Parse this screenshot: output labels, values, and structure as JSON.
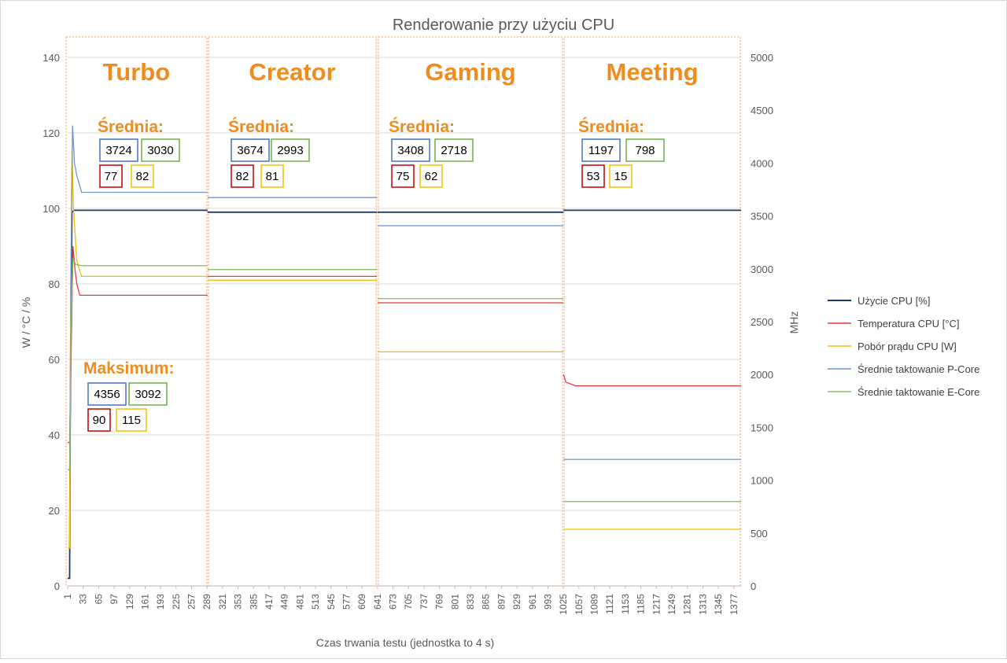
{
  "chart_data": {
    "type": "line",
    "title": "Renderowanie przy użyciu CPU",
    "xlabel": "Czas trwania testu (jednostka to 4 s)",
    "ylabel_left": "W / °C / %",
    "ylabel_right": "MHz",
    "ylim_left": [
      0,
      140
    ],
    "yticks_left": [
      0,
      20,
      40,
      60,
      80,
      100,
      120,
      140
    ],
    "ylim_right": [
      0,
      5000
    ],
    "yticks_right": [
      0,
      500,
      1000,
      1500,
      2000,
      2500,
      3000,
      3500,
      4000,
      4500,
      5000
    ],
    "xlim": [
      1,
      1392
    ],
    "xtick_start": 1,
    "xtick_step": 32,
    "xtick_count": 44,
    "grid": "horizontal",
    "legend_position": "right",
    "colors": {
      "cpu_usage": "#203864",
      "temperature": "#E03C3C",
      "power": "#F0C000",
      "pcore": "#6E93CF",
      "ecore": "#8CC068",
      "accent": "#F08C1E",
      "box_blue": "#4472C4",
      "box_green": "#70AD47",
      "box_red": "#C00000",
      "box_yellow": "#F0C000"
    },
    "series": [
      {
        "name": "Użycie CPU [%]",
        "key": "cpu_usage",
        "axis": "left",
        "segments": [
          {
            "x": [
              1,
              5,
              6,
              10,
              14,
              290
            ],
            "y": [
              2,
              2,
              40,
              99,
              99.5,
              99.5
            ]
          },
          {
            "x": [
              290,
              640
            ],
            "y": [
              99,
              99
            ]
          },
          {
            "x": [
              641,
              1025
            ],
            "y": [
              99,
              99
            ]
          },
          {
            "x": [
              1025,
              1392
            ],
            "y": [
              99.5,
              99.5
            ]
          }
        ]
      },
      {
        "name": "Temperatura CPU [°C]",
        "key": "temperature",
        "axis": "left",
        "segments": [
          {
            "x": [
              1,
              5,
              8,
              12,
              16,
              20,
              26,
              290
            ],
            "y": [
              38,
              38,
              60,
              90,
              84,
              80,
              77,
              77
            ]
          },
          {
            "x": [
              290,
              640
            ],
            "y": [
              82,
              82
            ]
          },
          {
            "x": [
              641,
              1025
            ],
            "y": [
              75,
              75
            ]
          },
          {
            "x": [
              1025,
              1030,
              1050,
              1392
            ],
            "y": [
              56,
              54,
              53,
              53
            ]
          }
        ]
      },
      {
        "name": "Pobór prądu CPU [W]",
        "key": "power",
        "axis": "left",
        "segments": [
          {
            "x": [
              1,
              5,
              7,
              10,
              13,
              20,
              30,
              290
            ],
            "y": [
              10,
              10,
              75,
              115,
              100,
              86,
              82,
              82
            ]
          },
          {
            "x": [
              290,
              640
            ],
            "y": [
              81,
              81
            ]
          },
          {
            "x": [
              641,
              1025
            ],
            "y": [
              62,
              62
            ]
          },
          {
            "x": [
              1025,
              1392
            ],
            "y": [
              15,
              15
            ]
          }
        ]
      },
      {
        "name": "Średnie taktowanie P-Core",
        "key": "pcore",
        "axis": "right",
        "segments": [
          {
            "x": [
              1,
              5,
              8,
              11,
              15,
              20,
              30,
              290
            ],
            "y": [
              1100,
              1100,
              3000,
              4356,
              4000,
              3880,
              3724,
              3724
            ]
          },
          {
            "x": [
              290,
              640
            ],
            "y": [
              3674,
              3674
            ]
          },
          {
            "x": [
              641,
              1025
            ],
            "y": [
              3408,
              3408
            ]
          },
          {
            "x": [
              1025,
              1392
            ],
            "y": [
              1197,
              1197
            ]
          }
        ]
      },
      {
        "name": "Średnie taktowanie E-Core",
        "key": "ecore",
        "axis": "right",
        "segments": [
          {
            "x": [
              1,
              5,
              8,
              12,
              18,
              30,
              290
            ],
            "y": [
              1100,
              1100,
              2500,
              3092,
              3040,
              3030,
              3030
            ]
          },
          {
            "x": [
              290,
              640
            ],
            "y": [
              2993,
              2993
            ]
          },
          {
            "x": [
              641,
              1025
            ],
            "y": [
              2718,
              2718
            ]
          },
          {
            "x": [
              1025,
              1392
            ],
            "y": [
              798,
              798
            ]
          }
        ]
      }
    ],
    "modes": [
      {
        "label": "Turbo",
        "x_start": 1,
        "x_end": 290
      },
      {
        "label": "Creator",
        "x_start": 290,
        "x_end": 640
      },
      {
        "label": "Gaming",
        "x_start": 641,
        "x_end": 1025
      },
      {
        "label": "Meeting",
        "x_start": 1025,
        "x_end": 1392
      }
    ],
    "annotations": {
      "average_heading": "Średnia:",
      "maximum_heading": "Maksimum:",
      "averages": [
        {
          "mode": "Turbo",
          "pcore": "3724",
          "ecore": "3030",
          "temperature": "77",
          "power": "82"
        },
        {
          "mode": "Creator",
          "pcore": "3674",
          "ecore": "2993",
          "temperature": "82",
          "power": "81"
        },
        {
          "mode": "Gaming",
          "pcore": "3408",
          "ecore": "2718",
          "temperature": "75",
          "power": "62"
        },
        {
          "mode": "Meeting",
          "pcore": "1197",
          "ecore": "798",
          "temperature": "53",
          "power": "15"
        }
      ],
      "maximum": {
        "mode": "Turbo",
        "pcore": "4356",
        "ecore": "3092",
        "temperature": "90",
        "power": "115"
      }
    }
  }
}
